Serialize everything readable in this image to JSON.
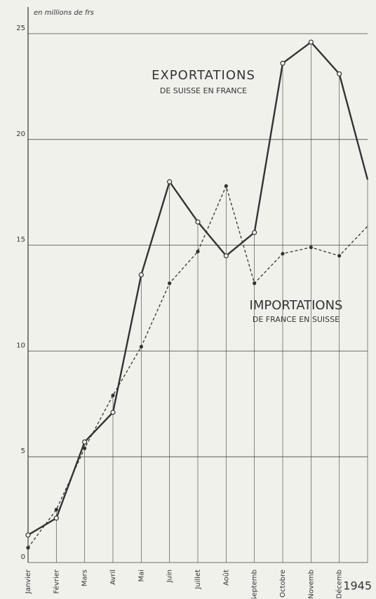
{
  "chart_data": {
    "type": "line",
    "y_label": "en millions de frs",
    "year": "1945",
    "categories": [
      "Janvier",
      "Février",
      "Mars",
      "Avril",
      "Mai",
      "Juin",
      "Juillet",
      "Août",
      "Septemb",
      "Octobre",
      "Novemb",
      "Décemb",
      null
    ],
    "series": [
      {
        "name": "EXPORTATIONS",
        "subtitle": "DE SUISSE EN FRANCE",
        "color": "#333333",
        "dash": false,
        "values": [
          1.3,
          2.1,
          5.7,
          7.1,
          13.6,
          18.0,
          16.1,
          14.5,
          15.6,
          23.6,
          24.6,
          23.1,
          18.1
        ]
      },
      {
        "name": "IMPORTATIONS",
        "subtitle": "DE FRANCE EN SUISSE",
        "color": "#333333",
        "dash": true,
        "values": [
          0.7,
          2.5,
          5.4,
          7.9,
          10.2,
          13.2,
          14.7,
          17.8,
          13.2,
          14.6,
          14.9,
          14.5,
          15.9
        ]
      }
    ],
    "ylim": [
      0,
      25
    ],
    "yticks": [
      0,
      5,
      10,
      15,
      20,
      25
    ],
    "grid": true
  }
}
